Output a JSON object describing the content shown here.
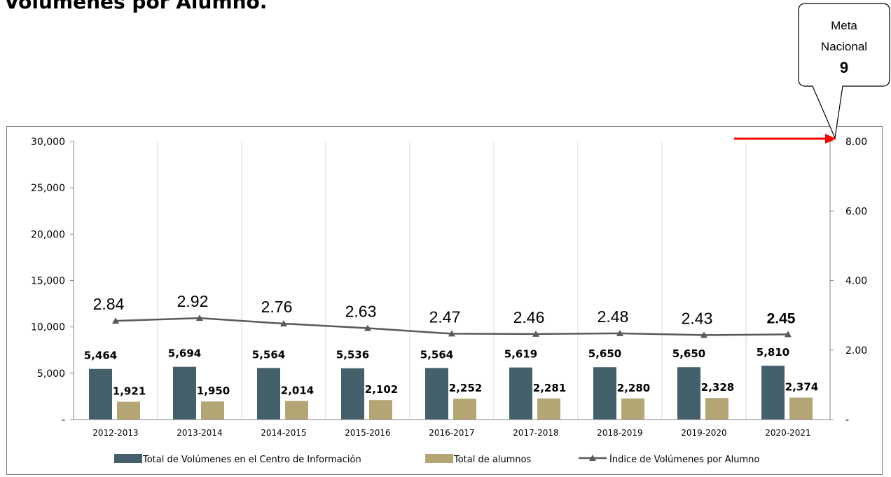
{
  "page": {
    "title": "Volúmenes por Alumno."
  },
  "callout": {
    "line1": "Meta",
    "line2": "Nacional",
    "value": "9"
  },
  "chart_data": {
    "type": "bar",
    "categories": [
      "2012-2013",
      "2013-2014",
      "2014-2015",
      "2015-2016",
      "2016-2017",
      "2017-2018",
      "2018-2019",
      "2019-2020",
      "2020-2021"
    ],
    "series": [
      {
        "name": "Total de Volúmenes en el Centro de Información",
        "type": "bar",
        "axis": "left",
        "color": "#44606b",
        "values": [
          5464,
          5694,
          5564,
          5536,
          5564,
          5619,
          5650,
          5650,
          5810
        ],
        "labels": [
          "5,464",
          "5,694",
          "5,564",
          "5,536",
          "5,564",
          "5,619",
          "5,650",
          "5,650",
          "5,810"
        ]
      },
      {
        "name": "Total de alumnos",
        "type": "bar",
        "axis": "left",
        "color": "#b4a674",
        "values": [
          1921,
          1950,
          2014,
          2102,
          2252,
          2281,
          2280,
          2328,
          2374
        ],
        "labels": [
          "1,921",
          "1,950",
          "2,014",
          "2,102",
          "2,252",
          "2,281",
          "2,280",
          "2,328",
          "2,374"
        ]
      },
      {
        "name": "Índice de Volúmenes por Alumno",
        "type": "line",
        "axis": "right",
        "color": "#595959",
        "values": [
          2.84,
          2.92,
          2.76,
          2.63,
          2.47,
          2.46,
          2.48,
          2.43,
          2.45
        ],
        "labels": [
          "2.84",
          "2.92",
          "2.76",
          "2.63",
          "2.47",
          "2.46",
          "2.48",
          "2.43",
          "2.45"
        ]
      }
    ],
    "y_left": {
      "range": [
        0,
        30000
      ],
      "ticks": [
        "-",
        "5,000",
        "10,000",
        "15,000",
        "20,000",
        "25,000",
        "30,000"
      ]
    },
    "y_right": {
      "range": [
        0,
        8
      ],
      "ticks": [
        "-",
        "2.00",
        "4.00",
        "6.00",
        "8.00"
      ]
    },
    "grid": "vertical",
    "legend": "bottom",
    "target_arrow": {
      "value": 8,
      "color": "#ff0000"
    }
  }
}
